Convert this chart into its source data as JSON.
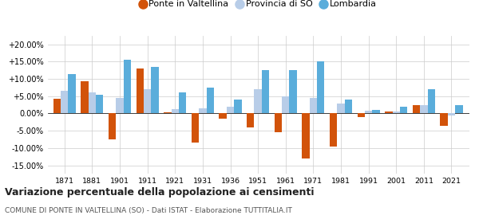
{
  "years": [
    1871,
    1881,
    1901,
    1911,
    1921,
    1931,
    1936,
    1951,
    1961,
    1971,
    1981,
    1991,
    2001,
    2011,
    2021
  ],
  "ponte": [
    4.3,
    9.3,
    -7.5,
    13.0,
    0.3,
    -8.5,
    -1.5,
    -4.0,
    -5.5,
    -13.0,
    -9.5,
    -1.0,
    0.5,
    2.5,
    -3.5
  ],
  "provincia": [
    6.5,
    6.0,
    4.5,
    7.0,
    1.2,
    1.5,
    2.0,
    7.0,
    5.0,
    4.5,
    2.8,
    0.8,
    0.5,
    2.5,
    -0.5
  ],
  "lombardia": [
    11.5,
    5.5,
    15.5,
    13.5,
    6.0,
    7.5,
    4.0,
    12.5,
    12.5,
    15.0,
    4.0,
    1.0,
    2.0,
    7.0,
    2.5
  ],
  "color_ponte": "#d2530a",
  "color_provincia": "#b8cde8",
  "color_lombardia": "#5aaddb",
  "title_main": "Variazione percentuale della popolazione ai censimenti",
  "title_sub": "COMUNE DI PONTE IN VALTELLINA (SO) - Dati ISTAT - Elaborazione TUTTITALIA.IT",
  "legend_labels": [
    "Ponte in Valtellina",
    "Provincia di SO",
    "Lombardia"
  ],
  "ylim": [
    -17.5,
    22.5
  ],
  "yticks": [
    -15.0,
    -10.0,
    -5.0,
    0.0,
    5.0,
    10.0,
    15.0,
    20.0
  ],
  "bar_width": 0.27
}
